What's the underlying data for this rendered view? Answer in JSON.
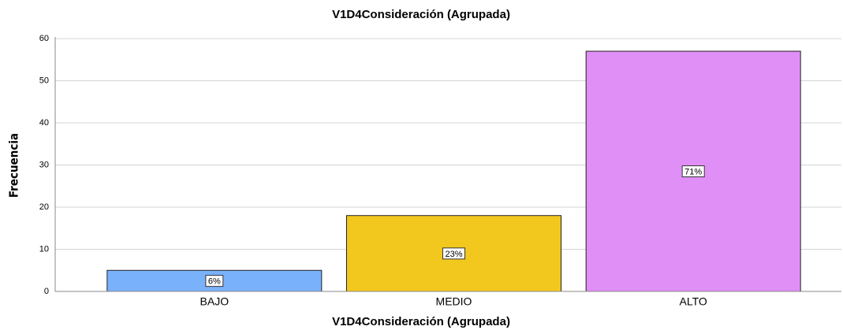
{
  "chart_data": {
    "type": "bar",
    "title": "V1D4Consideración (Agrupada)",
    "x_label": "V1D4Consideración (Agrupada)",
    "y_label": "Frecuencia",
    "categories": [
      "BAJO",
      "MEDIO",
      "ALTO"
    ],
    "values": [
      5,
      18,
      57
    ],
    "percent_labels": [
      "6%",
      "23%",
      "71%"
    ],
    "colors": [
      "#7ab1fb",
      "#f3c81e",
      "#df8ff5"
    ],
    "ylim": [
      0,
      60
    ],
    "yticks": [
      0,
      10,
      20,
      30,
      40,
      50,
      60
    ],
    "grid": true
  }
}
